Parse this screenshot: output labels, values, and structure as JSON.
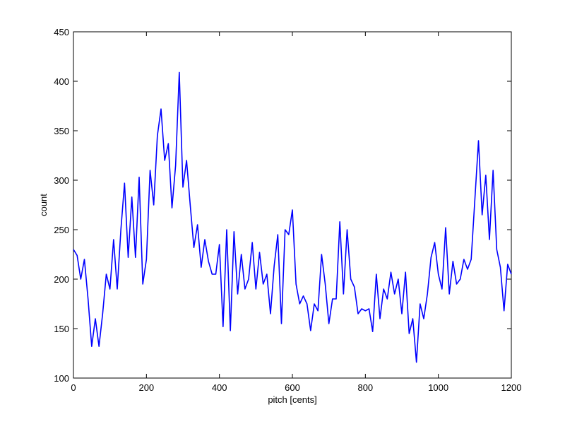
{
  "chart_data": {
    "type": "line",
    "x_label": "pitch [cents]",
    "y_label": "count",
    "x": [
      0,
      10,
      20,
      30,
      40,
      50,
      60,
      70,
      80,
      90,
      100,
      110,
      120,
      130,
      140,
      150,
      160,
      170,
      180,
      190,
      200,
      210,
      220,
      230,
      240,
      250,
      260,
      270,
      280,
      290,
      300,
      310,
      320,
      330,
      340,
      350,
      360,
      370,
      380,
      390,
      400,
      410,
      420,
      430,
      440,
      450,
      460,
      470,
      480,
      490,
      500,
      510,
      520,
      530,
      540,
      550,
      560,
      570,
      580,
      590,
      600,
      610,
      620,
      630,
      640,
      650,
      660,
      670,
      680,
      690,
      700,
      710,
      720,
      730,
      740,
      750,
      760,
      770,
      780,
      790,
      800,
      810,
      820,
      830,
      840,
      850,
      860,
      870,
      880,
      890,
      900,
      910,
      920,
      930,
      940,
      950,
      960,
      970,
      980,
      990,
      1000,
      1010,
      1020,
      1030,
      1040,
      1050,
      1060,
      1070,
      1080,
      1090,
      1100,
      1110,
      1120,
      1130,
      1140,
      1150,
      1160,
      1170,
      1180,
      1190,
      1200
    ],
    "series": [
      {
        "color": "#0000ff",
        "values": [
          230,
          224,
          200,
          220,
          180,
          132,
          160,
          132,
          165,
          205,
          190,
          240,
          190,
          250,
          297,
          222,
          283,
          222,
          303,
          195,
          220,
          310,
          275,
          345,
          372,
          320,
          337,
          272,
          315,
          409,
          293,
          320,
          275,
          232,
          255,
          212,
          240,
          218,
          205,
          205,
          235,
          152,
          250,
          148,
          248,
          185,
          225,
          190,
          200,
          237,
          190,
          227,
          195,
          205,
          165,
          213,
          245,
          155,
          250,
          245,
          270,
          195,
          175,
          183,
          175,
          148,
          175,
          168,
          225,
          195,
          155,
          180,
          180,
          258,
          185,
          250,
          200,
          192,
          165,
          170,
          168,
          170,
          147,
          205,
          160,
          190,
          180,
          207,
          185,
          200,
          165,
          207,
          145,
          160,
          116,
          175,
          160,
          185,
          222,
          237,
          205,
          190,
          252,
          185,
          218,
          195,
          200,
          220,
          210,
          220,
          280,
          340,
          265,
          305,
          240,
          310,
          230,
          212,
          168,
          215,
          205
        ]
      }
    ],
    "xlim": [
      0,
      1200
    ],
    "xticks": [
      0,
      200,
      400,
      600,
      800,
      1000,
      1200
    ],
    "ylim": [
      100,
      450
    ],
    "yticks": [
      100,
      150,
      200,
      250,
      300,
      350,
      400,
      450
    ]
  }
}
